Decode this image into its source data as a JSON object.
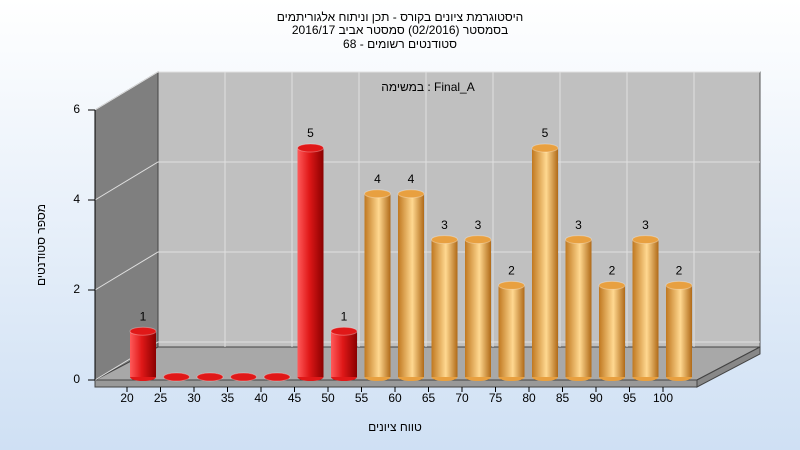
{
  "chart_data": {
    "type": "bar",
    "title": [
      "היסטוגרמת ציונים בקורס - תכן וניתוח אלגוריתמים",
      "בסמסטר  (02/2016)  סמסטר אביב 2016/17",
      "סטודנטים רשומים - 68"
    ],
    "annotation": "במשימה : Final_A",
    "y_label": "מספר סטודנטים",
    "x_label": "טווח ציונים",
    "categories": [
      "20",
      "25",
      "30",
      "35",
      "40",
      "45",
      "50",
      "55",
      "60",
      "65",
      "70",
      "75",
      "80",
      "85",
      "90",
      "95",
      "100"
    ],
    "values": [
      1,
      0,
      0,
      0,
      0,
      5,
      1,
      4,
      4,
      3,
      3,
      2,
      5,
      3,
      2,
      3,
      2
    ],
    "colors": [
      "#e01818",
      "#e01818",
      "#e01818",
      "#e01818",
      "#e01818",
      "#e01818",
      "#e01818",
      "#e8a040",
      "#e8a040",
      "#e8a040",
      "#e8a040",
      "#e8a040",
      "#e8a040",
      "#e8a040",
      "#e8a040",
      "#e8a040",
      "#e8a040"
    ],
    "ylim": [
      0,
      6
    ],
    "yticks": [
      0,
      2,
      4,
      6
    ],
    "grid": true
  }
}
